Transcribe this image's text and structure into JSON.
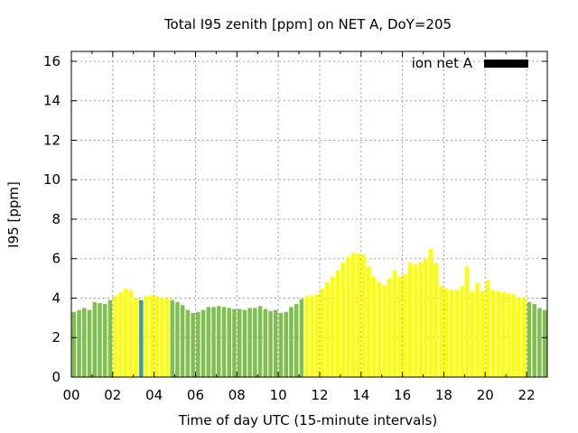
{
  "chart_data": {
    "type": "bar",
    "title": "Total I95 zenith [ppm] on NET A, DoY=205",
    "xlabel": "Time of day UTC (15-minute intervals)",
    "ylabel": "I95 [ppm]",
    "x_tick_labels": [
      "00",
      "02",
      "04",
      "06",
      "08",
      "10",
      "12",
      "14",
      "16",
      "18",
      "20",
      "22"
    ],
    "y_tick_labels": [
      "0",
      "2",
      "4",
      "6",
      "8",
      "10",
      "12",
      "14",
      "16"
    ],
    "xlim": [
      0,
      23
    ],
    "ylim": [
      0,
      16.5
    ],
    "grid": true,
    "legend": {
      "label": "ion net A",
      "color": "#000000",
      "placement": "top-right"
    },
    "colors": {
      "green": "#7fbf4f",
      "yellow": "#ffff00",
      "teal": "#3fa090"
    },
    "bar_interval_hours": 0.25,
    "values": [
      3.3,
      3.4,
      3.5,
      3.4,
      3.8,
      3.75,
      3.7,
      3.9,
      4.1,
      4.3,
      4.5,
      4.4,
      4.0,
      3.9,
      4.1,
      4.15,
      4.1,
      4.0,
      4.0,
      3.9,
      3.8,
      3.65,
      3.4,
      3.25,
      3.3,
      3.4,
      3.55,
      3.55,
      3.6,
      3.55,
      3.5,
      3.45,
      3.45,
      3.4,
      3.5,
      3.5,
      3.6,
      3.45,
      3.35,
      3.4,
      3.25,
      3.3,
      3.55,
      3.7,
      3.95,
      4.1,
      4.15,
      4.2,
      4.5,
      4.8,
      5.1,
      5.4,
      5.8,
      6.1,
      6.3,
      6.25,
      6.2,
      5.6,
      5.1,
      4.8,
      4.65,
      5.0,
      5.4,
      5.1,
      5.2,
      5.8,
      5.7,
      5.8,
      6.0,
      6.5,
      5.75,
      4.6,
      4.5,
      4.4,
      4.4,
      4.6,
      5.6,
      4.35,
      4.75,
      4.35,
      4.9,
      4.4,
      4.35,
      4.3,
      4.25,
      4.2,
      4.0,
      4.05,
      3.8,
      3.7,
      3.5,
      3.4
    ],
    "bar_colors": [
      "green",
      "green",
      "green",
      "green",
      "green",
      "green",
      "green",
      "green",
      "yellow",
      "yellow",
      "yellow",
      "yellow",
      "yellow",
      "teal",
      "yellow",
      "yellow",
      "yellow",
      "yellow",
      "yellow",
      "green",
      "green",
      "green",
      "green",
      "green",
      "green",
      "green",
      "green",
      "green",
      "green",
      "green",
      "green",
      "green",
      "green",
      "green",
      "green",
      "green",
      "green",
      "green",
      "green",
      "green",
      "green",
      "green",
      "green",
      "green",
      "green",
      "yellow",
      "yellow",
      "yellow",
      "yellow",
      "yellow",
      "yellow",
      "yellow",
      "yellow",
      "yellow",
      "yellow",
      "yellow",
      "yellow",
      "yellow",
      "yellow",
      "yellow",
      "yellow",
      "yellow",
      "yellow",
      "yellow",
      "yellow",
      "yellow",
      "yellow",
      "yellow",
      "yellow",
      "yellow",
      "yellow",
      "yellow",
      "yellow",
      "yellow",
      "yellow",
      "yellow",
      "yellow",
      "yellow",
      "yellow",
      "yellow",
      "yellow",
      "yellow",
      "yellow",
      "yellow",
      "yellow",
      "yellow",
      "yellow",
      "yellow",
      "green",
      "green",
      "green",
      "green"
    ]
  }
}
